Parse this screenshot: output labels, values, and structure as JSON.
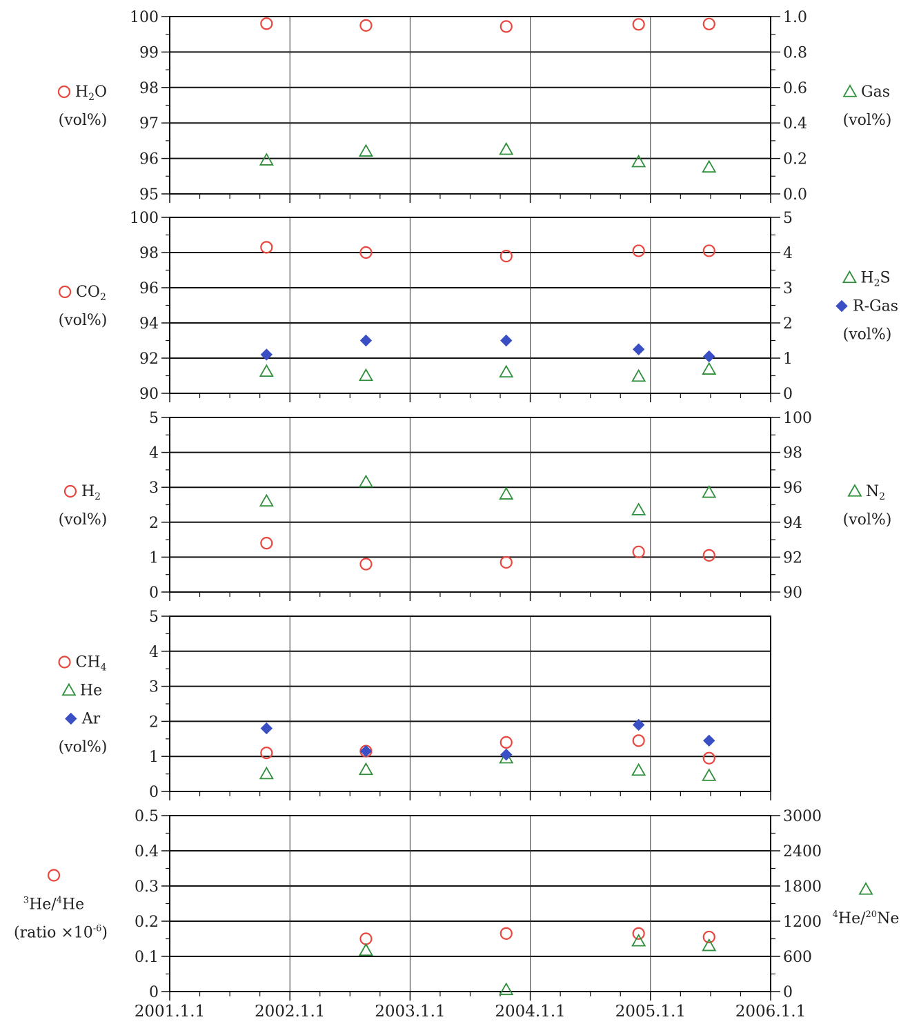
{
  "chart_data": [
    {
      "type": "scatter",
      "x_ticks": [
        "2001.1.1",
        "2002.1.1",
        "2003.1.1",
        "2004.1.1",
        "2005.1.1",
        "2006.1.1"
      ],
      "left_axis": {
        "ylim": [
          95,
          100
        ],
        "ticks": [
          "95",
          "96",
          "97",
          "98",
          "99",
          "100"
        ]
      },
      "right_axis": {
        "ylim": [
          0.0,
          1.0
        ],
        "ticks": [
          "0.0",
          "0.2",
          "0.4",
          "0.6",
          "0.8",
          "1.0"
        ]
      },
      "left_legend": [
        {
          "series": "H2O",
          "parts": [
            "H",
            "2",
            "O"
          ],
          "sub": [
            false,
            true,
            false
          ]
        },
        {
          "text": "(vol%)"
        }
      ],
      "right_legend": [
        {
          "series": "Gas",
          "parts": [
            "Gas"
          ],
          "sub": [
            false
          ]
        },
        {
          "text": "(vol%)"
        }
      ],
      "series": [
        {
          "name": "H2O",
          "axis": "left",
          "marker": "circle",
          "color": "#e8473f",
          "points": [
            [
              "2001-10-22",
              99.8
            ],
            [
              "2002-08-20",
              99.75
            ],
            [
              "2003-10-20",
              99.72
            ],
            [
              "2004-11-26",
              99.78
            ],
            [
              "2005-06-28",
              99.79
            ]
          ]
        },
        {
          "name": "Gas",
          "axis": "right",
          "marker": "triangle",
          "color": "#2f8f3a",
          "points": [
            [
              "2001-10-22",
              0.19
            ],
            [
              "2002-08-20",
              0.24
            ],
            [
              "2003-10-20",
              0.25
            ],
            [
              "2004-11-26",
              0.18
            ],
            [
              "2005-06-28",
              0.15
            ]
          ]
        }
      ]
    },
    {
      "type": "scatter",
      "x_ticks": [
        "2001.1.1",
        "2002.1.1",
        "2003.1.1",
        "2004.1.1",
        "2005.1.1",
        "2006.1.1"
      ],
      "left_axis": {
        "ylim": [
          90,
          100
        ],
        "ticks": [
          "90",
          "92",
          "94",
          "96",
          "98",
          "100"
        ]
      },
      "right_axis": {
        "ylim": [
          0,
          5
        ],
        "ticks": [
          "0",
          "1",
          "2",
          "3",
          "4",
          "5"
        ]
      },
      "left_legend": [
        {
          "series": "CO2",
          "parts": [
            "CO",
            "2"
          ],
          "sub": [
            false,
            true
          ]
        },
        {
          "text": "(vol%)"
        }
      ],
      "right_legend": [
        {
          "series": "H2S",
          "parts": [
            "H",
            "2",
            "S"
          ],
          "sub": [
            false,
            true,
            false
          ]
        },
        {
          "series": "R-Gas",
          "parts": [
            "R-Gas"
          ],
          "sub": [
            false
          ]
        },
        {
          "text": "(vol%)"
        }
      ],
      "series": [
        {
          "name": "CO2",
          "axis": "left",
          "marker": "circle",
          "color": "#e8473f",
          "points": [
            [
              "2001-10-22",
              98.3
            ],
            [
              "2002-08-20",
              98.0
            ],
            [
              "2003-10-20",
              97.8
            ],
            [
              "2004-11-26",
              98.1
            ],
            [
              "2005-06-28",
              98.1
            ]
          ]
        },
        {
          "name": "H2S",
          "axis": "right",
          "marker": "triangle",
          "color": "#2f8f3a",
          "points": [
            [
              "2001-10-22",
              0.62
            ],
            [
              "2002-08-20",
              0.5
            ],
            [
              "2003-10-20",
              0.6
            ],
            [
              "2004-11-26",
              0.48
            ],
            [
              "2005-06-28",
              0.68
            ]
          ]
        },
        {
          "name": "R-Gas",
          "axis": "right",
          "marker": "diamond",
          "color": "#3a4fc4",
          "points": [
            [
              "2001-10-22",
              1.1
            ],
            [
              "2002-08-20",
              1.5
            ],
            [
              "2003-10-20",
              1.5
            ],
            [
              "2004-11-26",
              1.25
            ],
            [
              "2005-06-28",
              1.05
            ]
          ]
        }
      ]
    },
    {
      "type": "scatter",
      "x_ticks": [
        "2001.1.1",
        "2002.1.1",
        "2003.1.1",
        "2004.1.1",
        "2005.1.1",
        "2006.1.1"
      ],
      "left_axis": {
        "ylim": [
          0,
          5
        ],
        "ticks": [
          "0",
          "1",
          "2",
          "3",
          "4",
          "5"
        ]
      },
      "right_axis": {
        "ylim": [
          90,
          100
        ],
        "ticks": [
          "90",
          "92",
          "94",
          "96",
          "98",
          "100"
        ]
      },
      "left_legend": [
        {
          "series": "H2",
          "parts": [
            "H",
            "2"
          ],
          "sub": [
            false,
            true
          ]
        },
        {
          "text": "(vol%)"
        }
      ],
      "right_legend": [
        {
          "series": "N2",
          "parts": [
            "N",
            "2"
          ],
          "sub": [
            false,
            true
          ]
        },
        {
          "text": "(vol%)"
        }
      ],
      "series": [
        {
          "name": "H2",
          "axis": "left",
          "marker": "circle",
          "color": "#e8473f",
          "points": [
            [
              "2001-10-22",
              1.4
            ],
            [
              "2002-08-20",
              0.8
            ],
            [
              "2003-10-20",
              0.85
            ],
            [
              "2004-11-26",
              1.15
            ],
            [
              "2005-06-28",
              1.05
            ]
          ]
        },
        {
          "name": "N2",
          "axis": "right",
          "marker": "triangle",
          "color": "#2f8f3a",
          "points": [
            [
              "2001-10-22",
              95.2
            ],
            [
              "2002-08-20",
              96.3
            ],
            [
              "2003-10-20",
              95.6
            ],
            [
              "2004-11-26",
              94.7
            ],
            [
              "2005-06-28",
              95.7
            ]
          ]
        }
      ]
    },
    {
      "type": "scatter",
      "x_ticks": [
        "2001.1.1",
        "2002.1.1",
        "2003.1.1",
        "2004.1.1",
        "2005.1.1",
        "2006.1.1"
      ],
      "left_axis": {
        "ylim": [
          0,
          5
        ],
        "ticks": [
          "0",
          "1",
          "2",
          "3",
          "4",
          "5"
        ]
      },
      "right_axis": null,
      "left_legend": [
        {
          "series": "CH4",
          "parts": [
            "CH",
            "4"
          ],
          "sub": [
            false,
            true
          ]
        },
        {
          "series": "He",
          "parts": [
            "He"
          ],
          "sub": [
            false
          ]
        },
        {
          "series": "Ar",
          "parts": [
            "Ar"
          ],
          "sub": [
            false
          ]
        },
        {
          "text": "(vol%)"
        }
      ],
      "right_legend": [],
      "series": [
        {
          "name": "CH4",
          "axis": "left",
          "marker": "circle",
          "color": "#e8473f",
          "points": [
            [
              "2001-10-22",
              1.1
            ],
            [
              "2002-08-20",
              1.15
            ],
            [
              "2003-10-20",
              1.4
            ],
            [
              "2004-11-26",
              1.45
            ],
            [
              "2005-06-28",
              0.95
            ]
          ]
        },
        {
          "name": "He",
          "axis": "left",
          "marker": "triangle",
          "color": "#2f8f3a",
          "points": [
            [
              "2001-10-22",
              0.5
            ],
            [
              "2002-08-20",
              0.62
            ],
            [
              "2003-10-20",
              0.95
            ],
            [
              "2004-11-26",
              0.6
            ],
            [
              "2005-06-28",
              0.45
            ]
          ]
        },
        {
          "name": "Ar",
          "axis": "left",
          "marker": "diamond",
          "color": "#3a4fc4",
          "points": [
            [
              "2001-10-22",
              1.8
            ],
            [
              "2002-08-20",
              1.15
            ],
            [
              "2003-10-20",
              1.05
            ],
            [
              "2004-11-26",
              1.9
            ],
            [
              "2005-06-28",
              1.45
            ]
          ]
        }
      ]
    },
    {
      "type": "scatter",
      "x_ticks": [
        "2001.1.1",
        "2002.1.1",
        "2003.1.1",
        "2004.1.1",
        "2005.1.1",
        "2006.1.1"
      ],
      "left_axis": {
        "ylim": [
          0,
          0.5
        ],
        "ticks": [
          "0",
          "0.1",
          "0.2",
          "0.3",
          "0.4",
          "0.5"
        ]
      },
      "right_axis": {
        "ylim": [
          0,
          3000
        ],
        "ticks": [
          "0",
          "600",
          "1200",
          "1800",
          "2400",
          "3000"
        ]
      },
      "left_legend": [
        {
          "marker_only": true
        },
        {
          "series": "3He/4He",
          "parts": [
            "3",
            "He/",
            "4",
            "He"
          ],
          "sup": [
            true,
            false,
            true,
            false
          ]
        },
        {
          "parts": [
            "(ratio ×10",
            "-6",
            ")"
          ],
          "sup": [
            false,
            true,
            false
          ]
        }
      ],
      "right_legend": [
        {
          "marker_only": true
        },
        {
          "series": "4He/20Ne",
          "parts": [
            "4",
            "He/",
            "20",
            "Ne"
          ],
          "sup": [
            true,
            false,
            true,
            false
          ]
        }
      ],
      "series": [
        {
          "name": "3He/4He",
          "axis": "left",
          "marker": "circle",
          "color": "#e8473f",
          "points": [
            [
              "2002-08-20",
              0.15
            ],
            [
              "2003-10-20",
              0.165
            ],
            [
              "2004-11-26",
              0.165
            ],
            [
              "2005-06-28",
              0.155
            ]
          ]
        },
        {
          "name": "4He/20Ne",
          "axis": "right",
          "marker": "triangle",
          "color": "#2f8f3a",
          "points": [
            [
              "2002-08-20",
              700
            ],
            [
              "2003-10-20",
              30
            ],
            [
              "2004-11-26",
              860
            ],
            [
              "2005-06-28",
              780
            ]
          ]
        }
      ]
    }
  ]
}
